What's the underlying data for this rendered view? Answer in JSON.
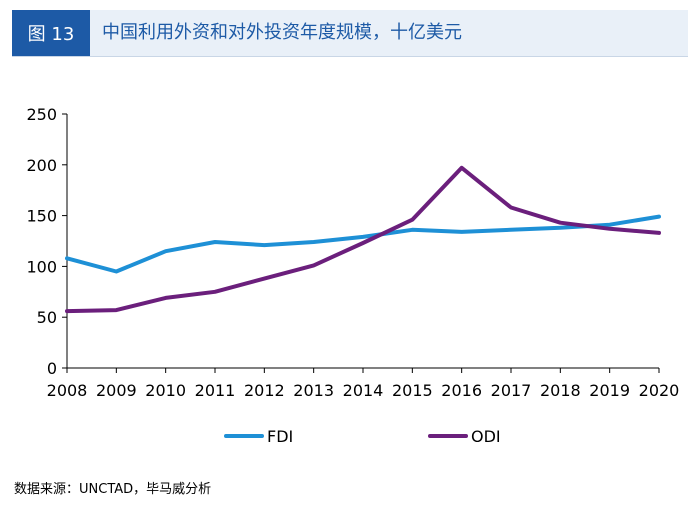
{
  "figure": {
    "tag": "图 13",
    "title": "中国利用外资和对外投资年度规模，十亿美元"
  },
  "source_note": "数据来源：UNCTAD，毕马威分析",
  "colors": {
    "header_bg": "#1d5aa6",
    "fdi": "#1e90d6",
    "odi": "#6b1f7c"
  },
  "chart_data": {
    "type": "line",
    "categories": [
      "2008",
      "2009",
      "2010",
      "2011",
      "2012",
      "2013",
      "2014",
      "2015",
      "2016",
      "2017",
      "2018",
      "2019",
      "2020"
    ],
    "series": [
      {
        "name": "FDI",
        "values": [
          108,
          95,
          115,
          124,
          121,
          124,
          129,
          136,
          134,
          136,
          138,
          141,
          149
        ]
      },
      {
        "name": "ODI",
        "values": [
          56,
          57,
          69,
          75,
          88,
          101,
          123,
          146,
          197,
          158,
          143,
          137,
          133
        ]
      }
    ],
    "yticks": [
      "0",
      "50",
      "100",
      "150",
      "200",
      "250"
    ],
    "ylim": [
      0,
      250
    ],
    "grid": false,
    "legend_position": "bottom"
  }
}
